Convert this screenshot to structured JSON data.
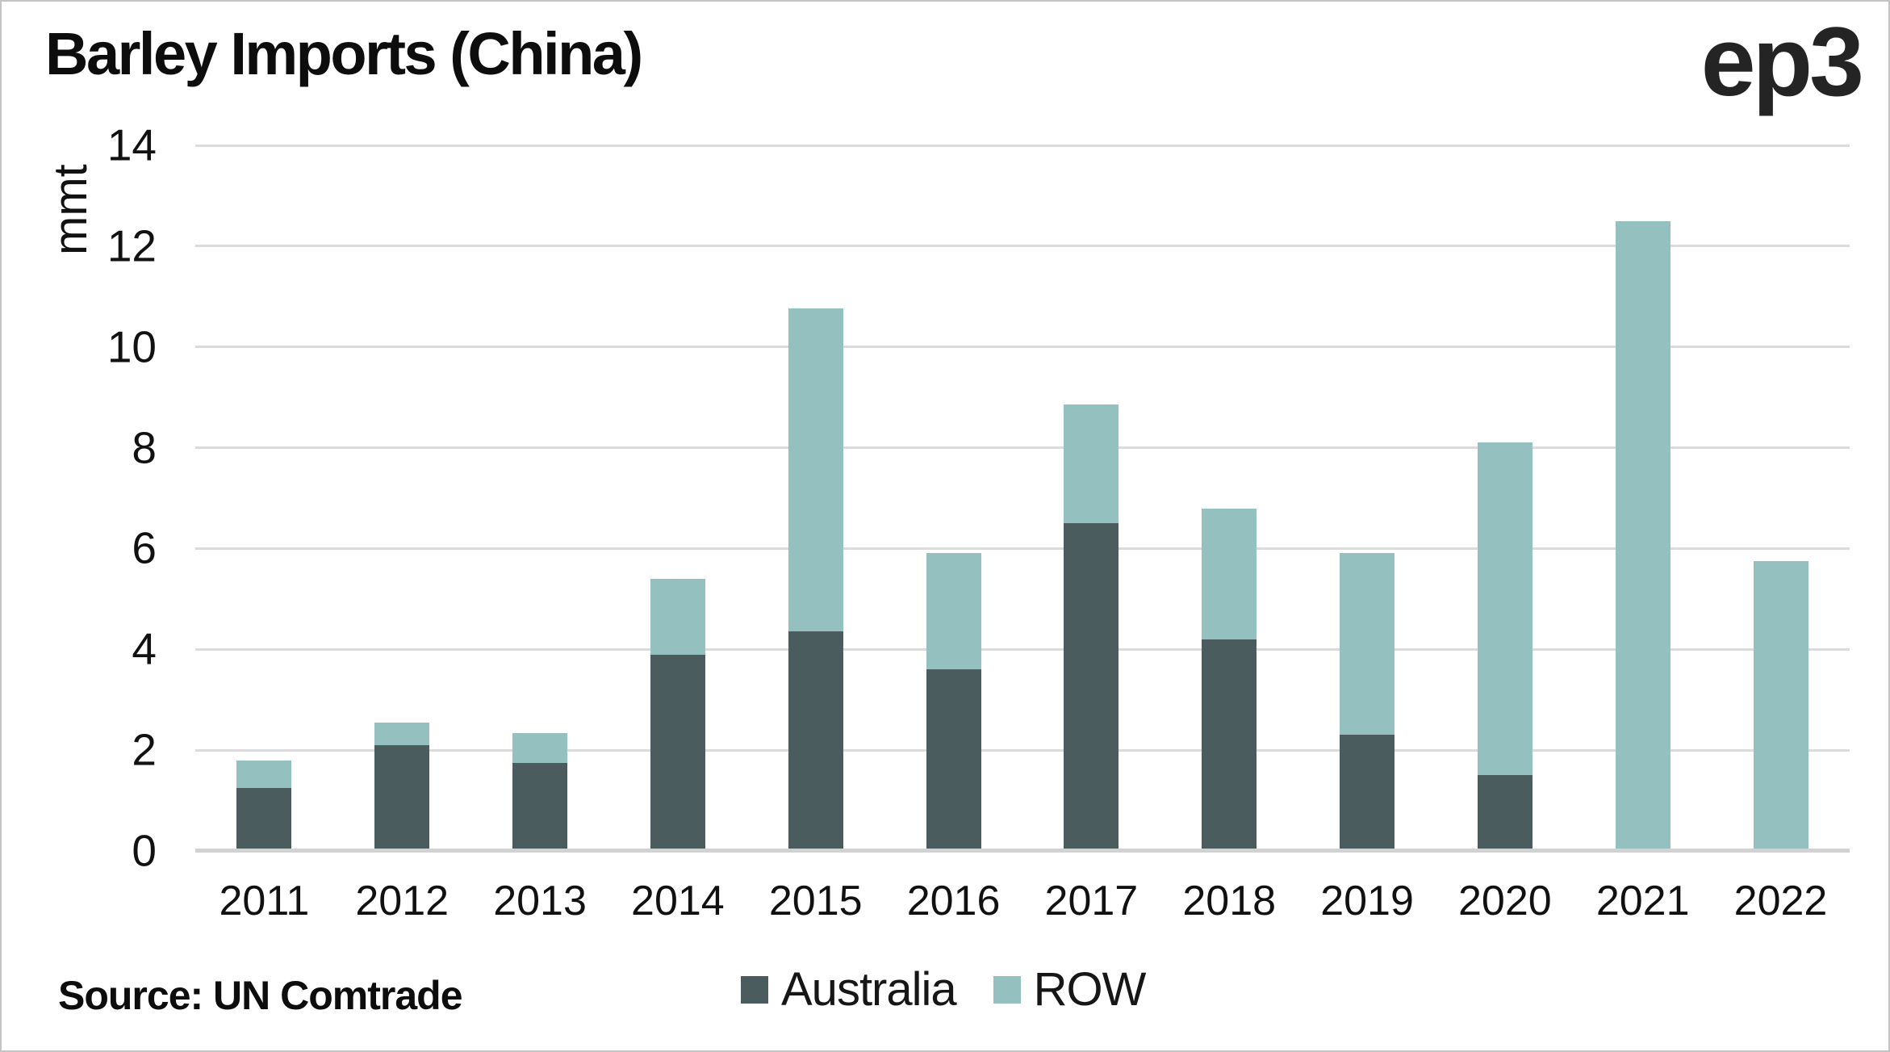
{
  "page": {
    "logo": "ep3",
    "source": "Source: UN Comtrade"
  },
  "chart_data": {
    "type": "bar",
    "stacked": true,
    "title": "Barley Imports (China)",
    "xlabel": "",
    "ylabel": "mmt",
    "ylim": [
      0,
      14
    ],
    "yticks": [
      0,
      2,
      4,
      6,
      8,
      10,
      12,
      14
    ],
    "grid": true,
    "legend_position": "bottom",
    "categories": [
      "2011",
      "2012",
      "2013",
      "2014",
      "2015",
      "2016",
      "2017",
      "2018",
      "2019",
      "2020",
      "2021",
      "2022"
    ],
    "series": [
      {
        "name": "Australia",
        "color": "#4a5c5e",
        "values": [
          1.25,
          2.1,
          1.75,
          3.9,
          4.35,
          3.6,
          6.5,
          4.2,
          2.3,
          1.5,
          0,
          0
        ]
      },
      {
        "name": "ROW",
        "color": "#94c1c0",
        "values": [
          0.55,
          0.45,
          0.6,
          1.5,
          6.4,
          2.3,
          2.35,
          2.6,
          3.6,
          6.6,
          12.5,
          5.75
        ]
      }
    ],
    "grid_color": "#dbdbdb",
    "axis_color": "#d2d2d2"
  }
}
